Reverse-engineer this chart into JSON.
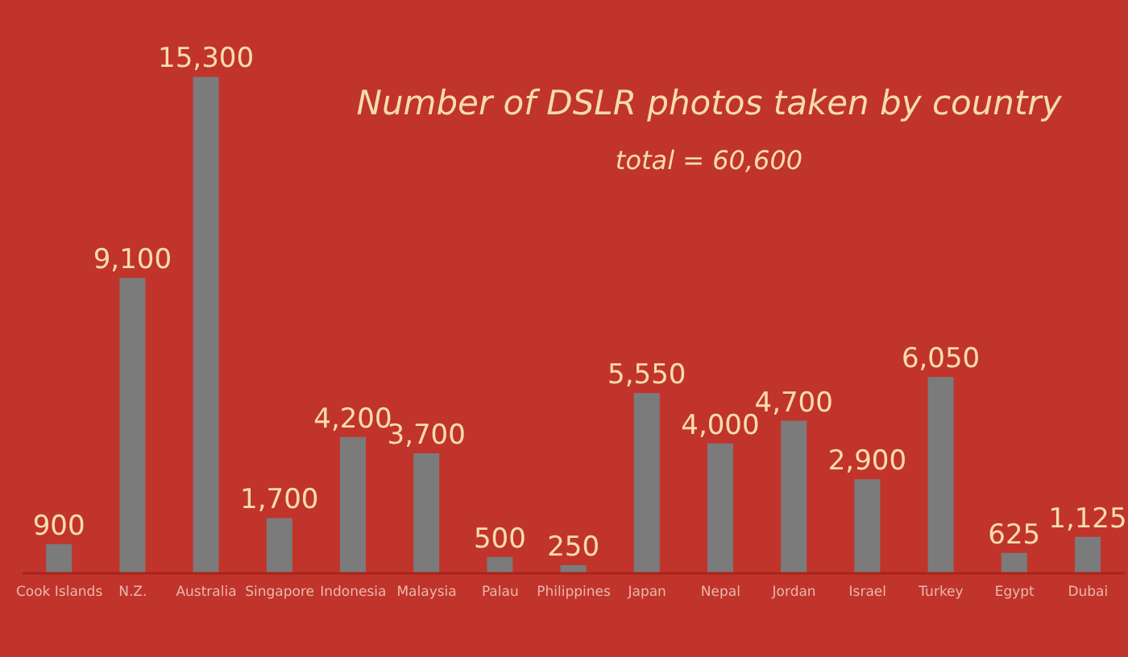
{
  "chart_data": {
    "type": "bar",
    "title": "Number of DSLR photos taken by country",
    "subtitle": "total = 60,600",
    "categories": [
      "Cook Islands",
      "N.Z.",
      "Australia",
      "Singapore",
      "Indonesia",
      "Malaysia",
      "Palau",
      "Philippines",
      "Japan",
      "Nepal",
      "Jordan",
      "Israel",
      "Turkey",
      "Egypt",
      "Dubai"
    ],
    "values": [
      900,
      9100,
      15300,
      1700,
      4200,
      3700,
      500,
      250,
      5550,
      4000,
      4700,
      2900,
      6050,
      625,
      1125
    ],
    "value_labels": [
      "900",
      "9,100",
      "15,300",
      "1,700",
      "4,200",
      "3,700",
      "500",
      "250",
      "5,550",
      "4,000",
      "4,700",
      "2,900",
      "6,050",
      "625",
      "1,125"
    ],
    "color": "#7b7b7b",
    "tick_labels": "x"
  }
}
